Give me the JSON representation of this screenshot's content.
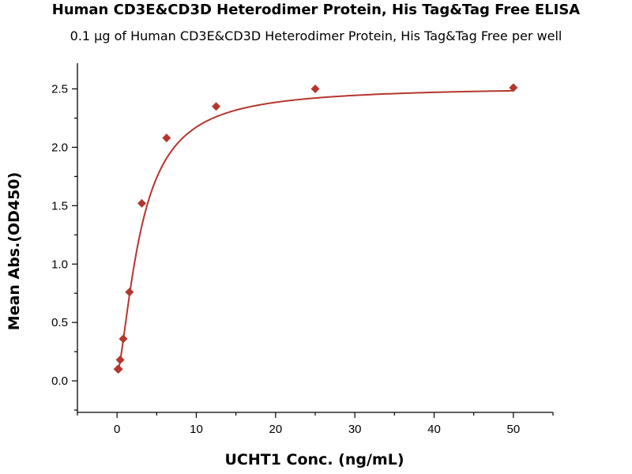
{
  "chart_data": {
    "type": "scatter",
    "title": "Human CD3E&CD3D Heterodimer Protein, His Tag&Tag Free ELISA",
    "subtitle": "0.1 μg of Human CD3E&CD3D Heterodimer Protein, His Tag&Tag Free per well",
    "xlabel": "UCHT1 Conc. (ng/mL)",
    "ylabel": "Mean Abs.(OD450)",
    "xlim": [
      -5,
      55
    ],
    "ylim": [
      -0.27,
      2.72
    ],
    "xticks": [
      0,
      10,
      20,
      30,
      40,
      50
    ],
    "yticks": [
      0.0,
      0.5,
      1.0,
      1.5,
      2.0,
      2.5
    ],
    "ytick_labels": [
      "0.0",
      "0.5",
      "1.0",
      "1.5",
      "2.0",
      "2.5"
    ],
    "grid": false,
    "legend": "none",
    "marker": "diamond",
    "color": "#b5362f",
    "series": [
      {
        "x": [
          0.098,
          0.195,
          0.391,
          0.781,
          1.5625,
          3.125,
          6.25,
          12.5,
          25,
          50
        ],
        "y": [
          0.1,
          0.1,
          0.18,
          0.36,
          0.76,
          1.52,
          2.08,
          2.35,
          2.5,
          2.51
        ]
      }
    ],
    "fit_curve": {
      "type": "four-parameter-logistic",
      "bottom": 0.06,
      "top": 2.52,
      "ec50": 3.0,
      "hill": 1.5
    }
  }
}
